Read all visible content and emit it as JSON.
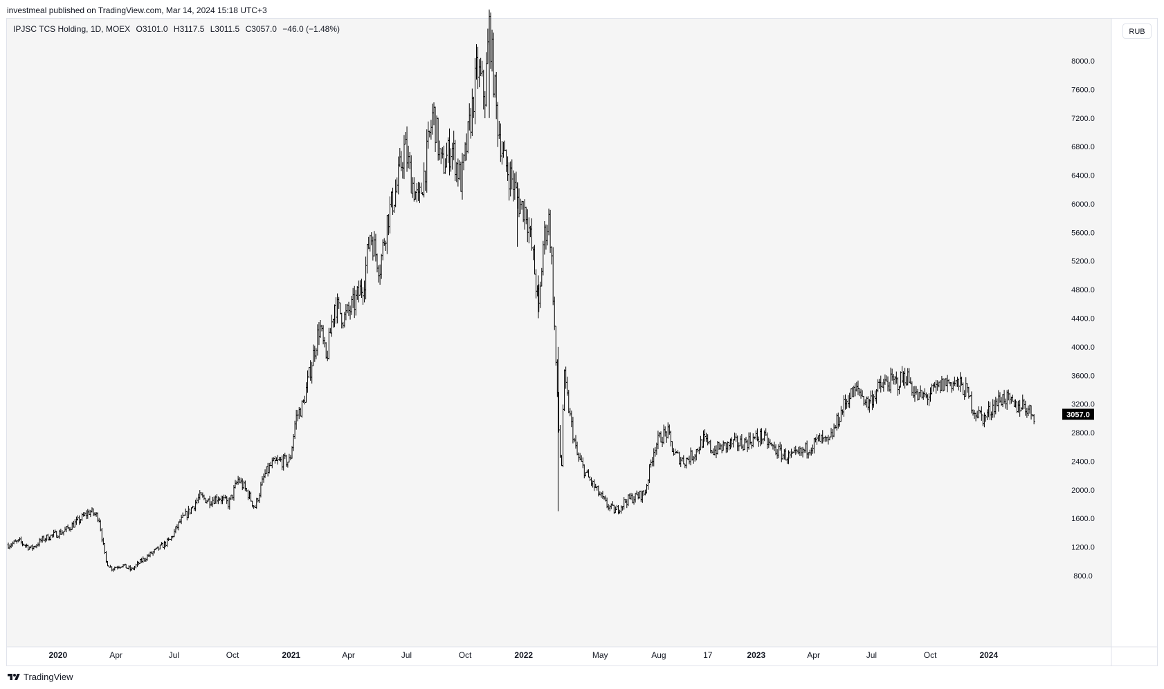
{
  "header": {
    "published_line": "investmeal published on TradingView.com, Mar 14, 2024 15:18 UTC+3"
  },
  "symbol": {
    "name": "IPJSC TCS Holding, 1D, MOEX",
    "open": "O3101.0",
    "high": "H3117.5",
    "low": "L3011.5",
    "close": "C3057.0",
    "change": "−46.0 (−1.48%)"
  },
  "currency_label": "RUB",
  "last_price_label": "3057.0",
  "footer": {
    "brand": "TradingView"
  },
  "colors": {
    "background": "#f5f5f5",
    "bars": "#000000",
    "last_price_tag": "#000000",
    "axis_text": "#131722"
  },
  "chart_data": {
    "type": "ohlc",
    "title": "IPJSC TCS Holding, 1D, MOEX",
    "xlabel": "",
    "ylabel": "",
    "y_axis_position": "right",
    "ylim": [
      560,
      8700
    ],
    "y_ticks": [
      "800.0",
      "1200.0",
      "1600.0",
      "2000.0",
      "2400.0",
      "2800.0",
      "3200.0",
      "3600.0",
      "4000.0",
      "4400.0",
      "4800.0",
      "5200.0",
      "5600.0",
      "6000.0",
      "6400.0",
      "6800.0",
      "7200.0",
      "7600.0",
      "8000.0"
    ],
    "x_ticks": [
      {
        "label": "2020",
        "date": "2020-01-01",
        "bold": true
      },
      {
        "label": "Apr",
        "date": "2020-04-01"
      },
      {
        "label": "Jul",
        "date": "2020-07-01"
      },
      {
        "label": "Oct",
        "date": "2020-10-01"
      },
      {
        "label": "2021",
        "date": "2021-01-01",
        "bold": true
      },
      {
        "label": "Apr",
        "date": "2021-04-01"
      },
      {
        "label": "Jul",
        "date": "2021-07-01"
      },
      {
        "label": "Oct",
        "date": "2021-10-01"
      },
      {
        "label": "2022",
        "date": "2022-01-01",
        "bold": true
      },
      {
        "label": "May",
        "date": "2022-05-01"
      },
      {
        "label": "Aug",
        "date": "2022-08-01"
      },
      {
        "label": "17",
        "date": "2022-10-17"
      },
      {
        "label": "2023",
        "date": "2023-01-01",
        "bold": true
      },
      {
        "label": "Apr",
        "date": "2023-04-01"
      },
      {
        "label": "Jul",
        "date": "2023-07-01"
      },
      {
        "label": "Oct",
        "date": "2023-10-01"
      },
      {
        "label": "2024",
        "date": "2024-01-01",
        "bold": true
      }
    ],
    "date_range": [
      "2019-10-15",
      "2024-03-14"
    ],
    "last_close": 3057.0,
    "close_path": [
      [
        "2019-10-15",
        1230
      ],
      [
        "2019-11-01",
        1280
      ],
      [
        "2019-11-20",
        1180
      ],
      [
        "2019-12-10",
        1320
      ],
      [
        "2020-01-10",
        1420
      ],
      [
        "2020-02-01",
        1560
      ],
      [
        "2020-02-20",
        1700
      ],
      [
        "2020-03-05",
        1620
      ],
      [
        "2020-03-16",
        1000
      ],
      [
        "2020-03-25",
        900
      ],
      [
        "2020-04-10",
        950
      ],
      [
        "2020-04-25",
        880
      ],
      [
        "2020-05-10",
        1000
      ],
      [
        "2020-05-25",
        1100
      ],
      [
        "2020-06-10",
        1200
      ],
      [
        "2020-06-25",
        1300
      ],
      [
        "2020-07-10",
        1550
      ],
      [
        "2020-07-25",
        1700
      ],
      [
        "2020-08-10",
        1900
      ],
      [
        "2020-08-25",
        1850
      ],
      [
        "2020-09-10",
        1900
      ],
      [
        "2020-09-25",
        1800
      ],
      [
        "2020-10-10",
        2150
      ],
      [
        "2020-10-25",
        1950
      ],
      [
        "2020-11-05",
        1750
      ],
      [
        "2020-11-20",
        2200
      ],
      [
        "2020-12-01",
        2350
      ],
      [
        "2020-12-15",
        2400
      ],
      [
        "2020-12-30",
        2400
      ],
      [
        "2021-01-08",
        3000
      ],
      [
        "2021-01-20",
        3200
      ],
      [
        "2021-02-05",
        3900
      ],
      [
        "2021-02-15",
        4300
      ],
      [
        "2021-02-25",
        3800
      ],
      [
        "2021-03-10",
        4600
      ],
      [
        "2021-03-25",
        4400
      ],
      [
        "2021-04-10",
        4600
      ],
      [
        "2021-04-25",
        4900
      ],
      [
        "2021-05-05",
        5600
      ],
      [
        "2021-05-20",
        5100
      ],
      [
        "2021-06-01",
        5800
      ],
      [
        "2021-06-15",
        6200
      ],
      [
        "2021-06-28",
        6800
      ],
      [
        "2021-07-10",
        6300
      ],
      [
        "2021-07-20",
        6000
      ],
      [
        "2021-08-01",
        6600
      ],
      [
        "2021-08-12",
        7300
      ],
      [
        "2021-08-25",
        6500
      ],
      [
        "2021-09-10",
        6800
      ],
      [
        "2021-09-25",
        6300
      ],
      [
        "2021-10-10",
        7200
      ],
      [
        "2021-10-20",
        7900
      ],
      [
        "2021-11-01",
        7500
      ],
      [
        "2021-11-08",
        8500
      ],
      [
        "2021-11-20",
        7200
      ],
      [
        "2021-12-01",
        6600
      ],
      [
        "2021-12-15",
        6300
      ],
      [
        "2021-12-25",
        6000
      ],
      [
        "2022-01-05",
        5900
      ],
      [
        "2022-01-15",
        5300
      ],
      [
        "2022-01-25",
        4500
      ],
      [
        "2022-02-01",
        5500
      ],
      [
        "2022-02-10",
        5800
      ],
      [
        "2022-02-15",
        5000
      ],
      [
        "2022-02-24",
        3000
      ],
      [
        "2022-03-01",
        2200
      ],
      [
        "2022-03-05",
        3600
      ],
      [
        "2022-03-15",
        3000
      ],
      [
        "2022-03-25",
        2500
      ],
      [
        "2022-04-10",
        2200
      ],
      [
        "2022-04-25",
        2000
      ],
      [
        "2022-05-10",
        1800
      ],
      [
        "2022-05-25",
        1700
      ],
      [
        "2022-06-10",
        1850
      ],
      [
        "2022-06-25",
        1900
      ],
      [
        "2022-07-10",
        1950
      ],
      [
        "2022-07-25",
        2600
      ],
      [
        "2022-08-05",
        2750
      ],
      [
        "2022-08-15",
        2800
      ],
      [
        "2022-08-25",
        2500
      ],
      [
        "2022-09-10",
        2400
      ],
      [
        "2022-09-25",
        2500
      ],
      [
        "2022-10-10",
        2700
      ],
      [
        "2022-10-25",
        2550
      ],
      [
        "2022-11-10",
        2600
      ],
      [
        "2022-11-25",
        2650
      ],
      [
        "2022-12-10",
        2650
      ],
      [
        "2022-12-25",
        2700
      ],
      [
        "2023-01-10",
        2750
      ],
      [
        "2023-01-25",
        2600
      ],
      [
        "2023-02-10",
        2500
      ],
      [
        "2023-02-25",
        2450
      ],
      [
        "2023-03-10",
        2500
      ],
      [
        "2023-03-25",
        2600
      ],
      [
        "2023-04-10",
        2700
      ],
      [
        "2023-04-25",
        2650
      ],
      [
        "2023-05-10",
        3000
      ],
      [
        "2023-05-25",
        3300
      ],
      [
        "2023-06-10",
        3400
      ],
      [
        "2023-06-25",
        3200
      ],
      [
        "2023-07-10",
        3400
      ],
      [
        "2023-07-25",
        3500
      ],
      [
        "2023-08-10",
        3500
      ],
      [
        "2023-08-25",
        3600
      ],
      [
        "2023-09-10",
        3300
      ],
      [
        "2023-09-25",
        3300
      ],
      [
        "2023-10-10",
        3400
      ],
      [
        "2023-10-25",
        3500
      ],
      [
        "2023-11-10",
        3500
      ],
      [
        "2023-11-25",
        3400
      ],
      [
        "2023-12-10",
        3100
      ],
      [
        "2023-12-25",
        3000
      ],
      [
        "2024-01-10",
        3200
      ],
      [
        "2024-01-25",
        3300
      ],
      [
        "2024-02-10",
        3150
      ],
      [
        "2024-02-25",
        3200
      ],
      [
        "2024-03-05",
        3100
      ],
      [
        "2024-03-14",
        3057
      ]
    ]
  }
}
